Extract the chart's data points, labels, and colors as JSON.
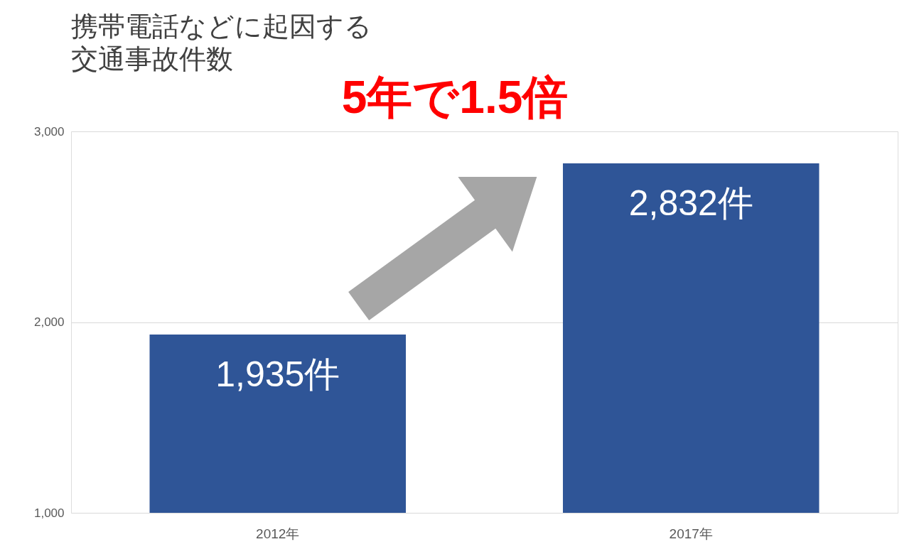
{
  "chart_data": {
    "type": "bar",
    "title": [
      "携帯電話などに起因する",
      "交通事故件数"
    ],
    "categories": [
      "2012年",
      "2017年"
    ],
    "values": [
      1935,
      2832
    ],
    "value_labels": [
      "1,935件",
      "2,832件"
    ],
    "color": "#2f5597",
    "ylim": [
      1000,
      3000
    ],
    "yticks": [
      {
        "value": 1000,
        "label": "1,000"
      },
      {
        "value": 2000,
        "label": "2,000"
      },
      {
        "value": 3000,
        "label": "3,000"
      }
    ],
    "grid": "y",
    "annotations": [
      "5年で1.5倍"
    ]
  }
}
